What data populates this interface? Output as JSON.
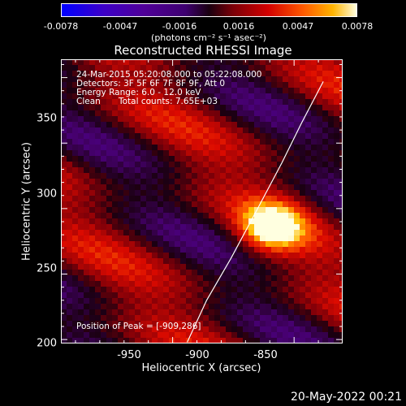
{
  "colorbar": {
    "ticks": [
      "-0.0078",
      "-0.0047",
      "-0.0016",
      "0.0016",
      "0.0047",
      "0.0078"
    ],
    "units": "(photons cm⁻² s⁻¹ asec⁻²)",
    "range": [
      -0.0078,
      0.0078
    ]
  },
  "annotation": {
    "line1": "24-Mar-2015 05:20:08.000 to 05:22:08.000",
    "line2": "Detectors: 3F 5F 6F 7F 8F 9F, Att 0",
    "line3": "Energy Range: 6.0 - 12.0 keV",
    "line4_left": "Clean",
    "line4_right": "Total counts: 7.65E+03",
    "peak": "Position of Peak = [-909,286]"
  },
  "footer": {
    "date": "20-May-2022 00:21"
  },
  "chart_data": {
    "type": "heatmap",
    "title": "Reconstructed RHESSI Image",
    "xlabel": "Heliocentric X (arcsec)",
    "ylabel": "Heliocentric Y (arcsec)",
    "xlim": [
      -996,
      -880
    ],
    "ylim": [
      197,
      414
    ],
    "x_ticks": [
      "-950",
      "-900",
      "-850"
    ],
    "y_ticks": [
      "200",
      "250",
      "300",
      "350"
    ],
    "peak_position": [
      -909,
      286
    ],
    "limb_curve": [
      [
        -944,
        198
      ],
      [
        -936,
        230
      ],
      [
        -926,
        262
      ],
      [
        -915,
        300
      ],
      [
        -905,
        335
      ],
      [
        -897,
        365
      ],
      [
        -888,
        397
      ]
    ],
    "colormap": "red-temperature",
    "grid": false
  }
}
